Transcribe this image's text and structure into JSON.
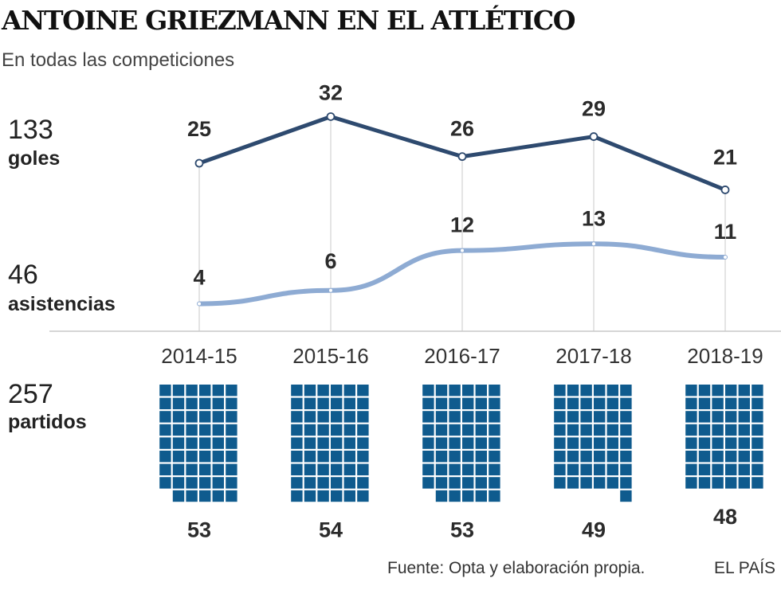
{
  "header": {
    "title": "ANTOINE GRIEZMANN EN EL ATLÉTICO",
    "subtitle": "En todas las competiciones"
  },
  "totals": {
    "goals_total": "133",
    "goals_label": "goles",
    "assists_total": "46",
    "assists_label": "asistencias",
    "matches_total": "257",
    "matches_label": "partidos"
  },
  "colors": {
    "goals_line": "#2e4a6f",
    "assists_line": "#8eabd3",
    "match_squares": "#0f5b8e",
    "guide_lines": "#c8c8c8"
  },
  "chart_data": {
    "type": "line",
    "categories": [
      "2014-15",
      "2015-16",
      "2016-17",
      "2017-18",
      "2018-19"
    ],
    "series": [
      {
        "name": "goles",
        "values": [
          25,
          32,
          26,
          29,
          21
        ]
      },
      {
        "name": "asistencias",
        "values": [
          4,
          6,
          12,
          13,
          11
        ]
      }
    ],
    "matches": {
      "name": "partidos",
      "values": [
        53,
        54,
        53,
        49,
        48
      ],
      "chart_type": "waffle"
    },
    "title": "ANTOINE GRIEZMANN EN EL ATLÉTICO",
    "subtitle": "En todas las competiciones",
    "xlabel": "",
    "ylabel": "",
    "grid": false,
    "legend": "left"
  },
  "footer": {
    "source": "Fuente: Opta y elaboración propia.",
    "brand": "EL PAÍS"
  }
}
